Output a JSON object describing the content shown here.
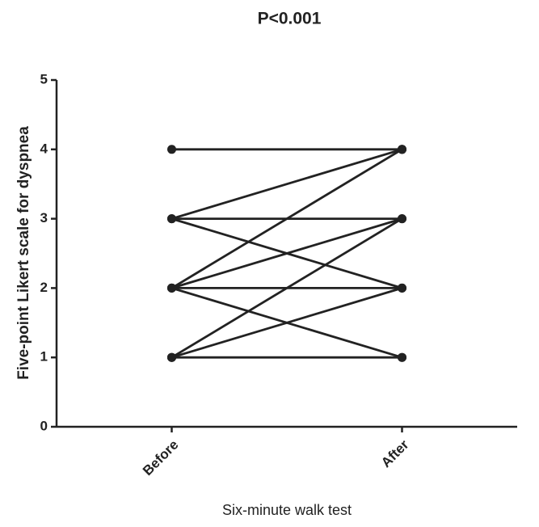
{
  "chart_data": {
    "type": "line",
    "title": "P<0.001",
    "x_label": "Six-minute walk test",
    "y_label": "Five-point Likert scale for dyspnea",
    "categories": [
      "Before",
      "After"
    ],
    "series": [
      {
        "color": "#222222",
        "values": [
          4,
          4
        ]
      },
      {
        "color": "#222222",
        "values": [
          3,
          4
        ]
      },
      {
        "color": "#222222",
        "values": [
          3,
          3
        ]
      },
      {
        "color": "#222222",
        "values": [
          3,
          2
        ]
      },
      {
        "color": "#222222",
        "values": [
          2,
          4
        ]
      },
      {
        "color": "#222222",
        "values": [
          2,
          3
        ]
      },
      {
        "color": "#222222",
        "values": [
          2,
          2
        ]
      },
      {
        "color": "#222222",
        "values": [
          2,
          1
        ]
      },
      {
        "color": "#222222",
        "values": [
          1,
          3
        ]
      },
      {
        "color": "#222222",
        "values": [
          1,
          2
        ]
      },
      {
        "color": "#222222",
        "values": [
          1,
          1
        ]
      }
    ],
    "ylim": [
      0,
      5
    ],
    "yticks": [
      0,
      1,
      2,
      3,
      4,
      5
    ],
    "grid": false
  }
}
